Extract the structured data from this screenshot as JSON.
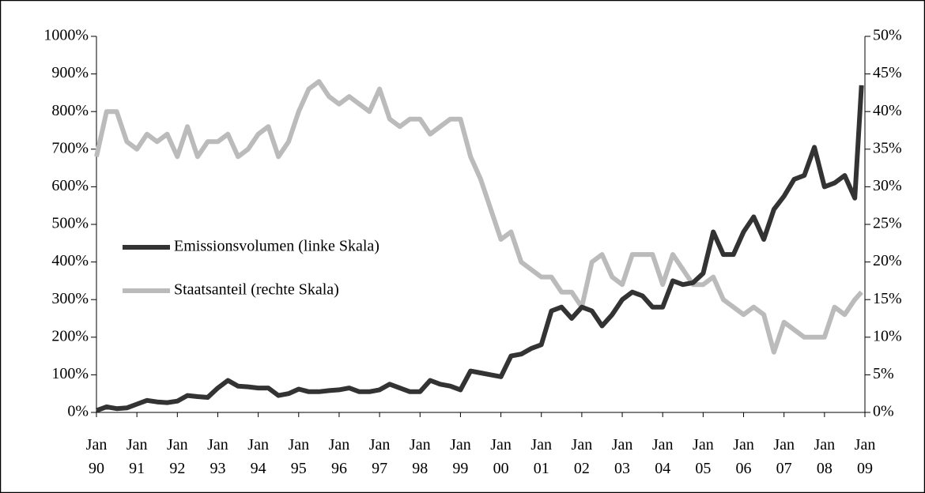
{
  "chart_data": {
    "type": "line",
    "x": [
      "1990-01",
      "1990-04",
      "1990-07",
      "1990-10",
      "1991-01",
      "1991-04",
      "1991-07",
      "1991-10",
      "1992-01",
      "1992-04",
      "1992-07",
      "1992-10",
      "1993-01",
      "1993-04",
      "1993-07",
      "1993-10",
      "1994-01",
      "1994-04",
      "1994-07",
      "1994-10",
      "1995-01",
      "1995-04",
      "1995-07",
      "1995-10",
      "1996-01",
      "1996-04",
      "1996-07",
      "1996-10",
      "1997-01",
      "1997-04",
      "1997-07",
      "1997-10",
      "1998-01",
      "1998-04",
      "1998-07",
      "1998-10",
      "1999-01",
      "1999-04",
      "1999-07",
      "1999-10",
      "2000-01",
      "2000-04",
      "2000-07",
      "2000-10",
      "2001-01",
      "2001-04",
      "2001-07",
      "2001-10",
      "2002-01",
      "2002-04",
      "2002-07",
      "2002-10",
      "2003-01",
      "2003-04",
      "2003-07",
      "2003-10",
      "2004-01",
      "2004-04",
      "2004-07",
      "2004-10",
      "2005-01",
      "2005-04",
      "2005-07",
      "2005-10",
      "2006-01",
      "2006-04",
      "2006-07",
      "2006-10",
      "2007-01",
      "2007-04",
      "2007-07",
      "2007-10",
      "2008-01",
      "2008-04",
      "2008-07",
      "2008-10",
      "2008-12"
    ],
    "series": [
      {
        "name": "Emissionsvolumen (linke Skala)",
        "color": "#333333",
        "axis": "y",
        "values": [
          5,
          15,
          10,
          12,
          22,
          32,
          28,
          26,
          30,
          45,
          42,
          40,
          65,
          85,
          70,
          68,
          65,
          65,
          45,
          50,
          62,
          55,
          55,
          58,
          60,
          65,
          55,
          55,
          60,
          75,
          65,
          55,
          55,
          85,
          75,
          70,
          60,
          110,
          105,
          100,
          95,
          150,
          155,
          170,
          180,
          270,
          280,
          250,
          280,
          270,
          230,
          260,
          300,
          320,
          310,
          280,
          280,
          350,
          340,
          345,
          370,
          480,
          420,
          420,
          480,
          520,
          460,
          540,
          575,
          620,
          630,
          705,
          600,
          610,
          630,
          570,
          870
        ]
      },
      {
        "name": "Staatsanteil (rechte Skala)",
        "color": "#bbbbbb",
        "axis": "y2",
        "values": [
          34,
          40,
          40,
          36,
          35,
          37,
          36,
          37,
          34,
          38,
          34,
          36,
          36,
          37,
          34,
          35,
          37,
          38,
          34,
          36,
          40,
          43,
          44,
          42,
          41,
          42,
          41,
          40,
          43,
          39,
          38,
          39,
          39,
          37,
          38,
          39,
          39,
          34,
          31,
          27,
          23,
          24,
          20,
          19,
          18,
          18,
          16,
          16,
          14,
          20,
          21,
          18,
          17,
          21,
          21,
          21,
          17,
          21,
          19,
          17,
          17,
          18,
          15,
          14,
          13,
          14,
          13,
          8,
          12,
          11,
          10,
          10,
          10,
          14,
          13,
          15,
          16
        ]
      }
    ],
    "xlim": [
      "1990-01",
      "2009-01"
    ],
    "xticks": [
      {
        "value": "1990-01",
        "label": "Jan 90"
      },
      {
        "value": "1991-01",
        "label": "Jan 91"
      },
      {
        "value": "1992-01",
        "label": "Jan 92"
      },
      {
        "value": "1993-01",
        "label": "Jan 93"
      },
      {
        "value": "1994-01",
        "label": "Jan 94"
      },
      {
        "value": "1995-01",
        "label": "Jan 95"
      },
      {
        "value": "1996-01",
        "label": "Jan 96"
      },
      {
        "value": "1997-01",
        "label": "Jan 97"
      },
      {
        "value": "1998-01",
        "label": "Jan 98"
      },
      {
        "value": "1999-01",
        "label": "Jan 99"
      },
      {
        "value": "2000-01",
        "label": "Jan 00"
      },
      {
        "value": "2001-01",
        "label": "Jan 01"
      },
      {
        "value": "2002-01",
        "label": "Jan 02"
      },
      {
        "value": "2003-01",
        "label": "Jan 03"
      },
      {
        "value": "2004-01",
        "label": "Jan 04"
      },
      {
        "value": "2005-01",
        "label": "Jan 05"
      },
      {
        "value": "2006-01",
        "label": "Jan 06"
      },
      {
        "value": "2007-01",
        "label": "Jan 07"
      },
      {
        "value": "2008-01",
        "label": "Jan 08"
      },
      {
        "value": "2009-01",
        "label": "Jan 09"
      }
    ],
    "ylim": [
      0,
      1000
    ],
    "yticks": [
      {
        "value": 0,
        "label": "0%"
      },
      {
        "value": 100,
        "label": "100%"
      },
      {
        "value": 200,
        "label": "200%"
      },
      {
        "value": 300,
        "label": "300%"
      },
      {
        "value": 400,
        "label": "400%"
      },
      {
        "value": 500,
        "label": "500%"
      },
      {
        "value": 600,
        "label": "600%"
      },
      {
        "value": 700,
        "label": "700%"
      },
      {
        "value": 800,
        "label": "800%"
      },
      {
        "value": 900,
        "label": "900%"
      },
      {
        "value": 1000,
        "label": "1000%"
      }
    ],
    "y2lim": [
      0,
      50
    ],
    "y2ticks": [
      {
        "value": 0,
        "label": "0%"
      },
      {
        "value": 5,
        "label": "5%"
      },
      {
        "value": 10,
        "label": "10%"
      },
      {
        "value": 15,
        "label": "15%"
      },
      {
        "value": 20,
        "label": "20%"
      },
      {
        "value": 25,
        "label": "25%"
      },
      {
        "value": 30,
        "label": "30%"
      },
      {
        "value": 35,
        "label": "35%"
      },
      {
        "value": 40,
        "label": "40%"
      },
      {
        "value": 45,
        "label": "45%"
      },
      {
        "value": 50,
        "label": "50%"
      }
    ],
    "grid": false
  }
}
